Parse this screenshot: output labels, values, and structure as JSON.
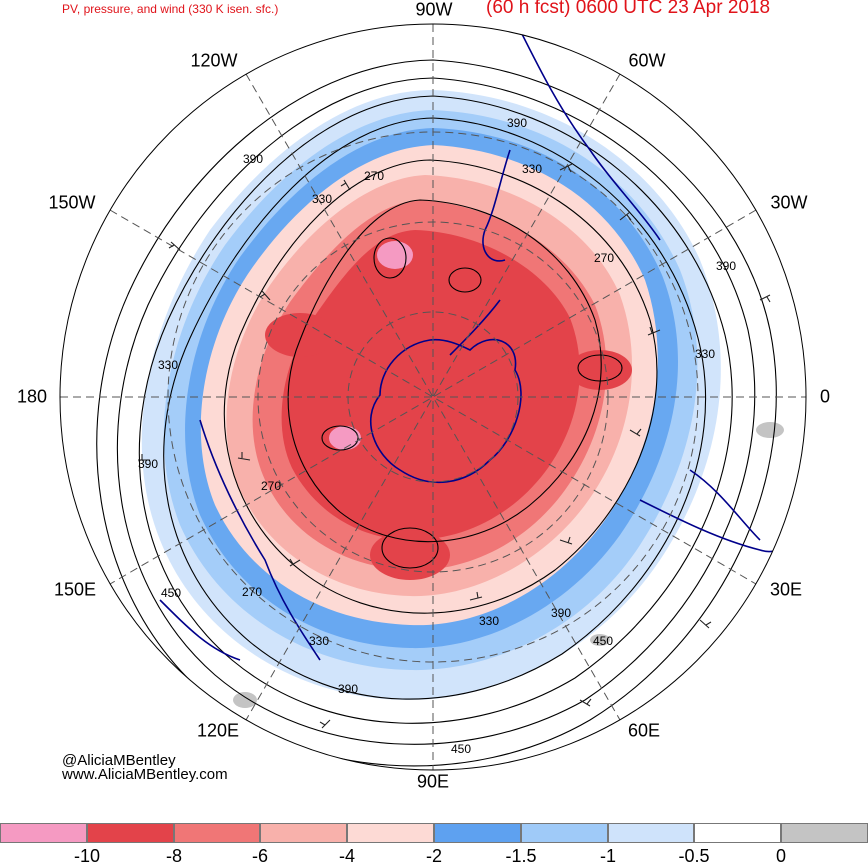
{
  "header": {
    "title": "PV, pressure, and wind (330 K isen. sfc.)",
    "valid_time": "(60 h fcst) 0600 UTC 23 Apr 2018"
  },
  "longitude_labels": {
    "lon_90w": "90W",
    "lon_60w": "60W",
    "lon_120w": "120W",
    "lon_150w": "150W",
    "lon_30w": "30W",
    "lon_180": "180",
    "lon_0": "0",
    "lon_150e": "150E",
    "lon_30e": "30E",
    "lon_120e": "120E",
    "lon_60e": "60E",
    "lon_90e": "90E"
  },
  "contour_labels": [
    "390",
    "330",
    "390",
    "270",
    "330",
    "270",
    "390",
    "330",
    "330",
    "390",
    "270",
    "450",
    "270",
    "330",
    "390",
    "330",
    "390",
    "450",
    "450"
  ],
  "credits": {
    "handle": "@AliciaMBentley",
    "website": "www.AliciaMBentley.com"
  },
  "colorbar": {
    "ticks": [
      "-10",
      "-8",
      "-6",
      "-4",
      "-2",
      "-1.5",
      "-1",
      "-0.5",
      "0"
    ],
    "colors": [
      "#f59ac2",
      "#e3434a",
      "#f07676",
      "#f8b1ab",
      "#fddad5",
      "#5ea1f0",
      "#9fcaf8",
      "#cfe3fb",
      "#ffffff",
      "#c4c4c4"
    ]
  },
  "map_colors": {
    "pv_strong": "#e3434a",
    "pv_moderate": "#f07676",
    "pv_weak": "#f8b1ab",
    "pv_weakest": "#fddad5",
    "pos_strong": "#5ea1f0",
    "pos_moderate": "#9fcaf8",
    "pos_weak": "#cfe3fb",
    "coastline": "#00008b",
    "contour": "#000000",
    "graticule": "#555555"
  }
}
